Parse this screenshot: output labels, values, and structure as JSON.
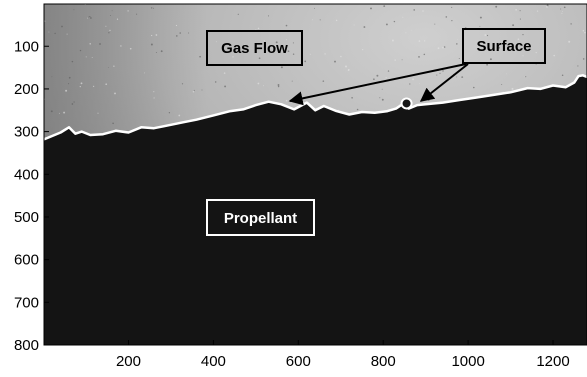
{
  "image": {
    "top_region": "bright grey speckled background above surface",
    "bottom_region": "near-black solid region below surface",
    "surface_line_color": "#ffffff",
    "annotation_box_border_dark": "#000000",
    "annotation_box_border_light": "#ffffff"
  },
  "axes": {
    "x_ticks": [
      "200",
      "400",
      "600",
      "800",
      "1000",
      "1200"
    ],
    "x_tick_values": [
      200,
      400,
      600,
      800,
      1000,
      1200
    ],
    "y_ticks": [
      "100",
      "200",
      "300",
      "400",
      "500",
      "600",
      "700",
      "800"
    ],
    "y_tick_values": [
      100,
      200,
      300,
      400,
      500,
      600,
      700,
      800
    ],
    "xlim": [
      1,
      1280
    ],
    "ylim": [
      1,
      800
    ],
    "y_direction": "reversed"
  },
  "surface_profile": {
    "x": [
      1,
      40,
      60,
      75,
      90,
      110,
      140,
      170,
      200,
      230,
      260,
      300,
      330,
      360,
      400,
      440,
      470,
      500,
      530,
      560,
      590,
      620,
      640,
      660,
      690,
      720,
      750,
      780,
      810,
      830,
      845,
      860,
      880,
      900,
      940,
      980,
      1020,
      1060,
      1100,
      1140,
      1170,
      1200,
      1230,
      1250,
      1260,
      1270,
      1280
    ],
    "y": [
      318,
      302,
      290,
      305,
      300,
      308,
      306,
      298,
      302,
      290,
      292,
      284,
      278,
      272,
      262,
      252,
      248,
      238,
      230,
      236,
      248,
      232,
      250,
      240,
      252,
      260,
      254,
      256,
      252,
      246,
      236,
      246,
      238,
      236,
      232,
      226,
      220,
      214,
      208,
      198,
      200,
      192,
      196,
      185,
      170,
      168,
      172
    ]
  },
  "annotations": {
    "gas_flow": "Gas Flow",
    "surface": "Surface",
    "propellant": "Propellant"
  }
}
